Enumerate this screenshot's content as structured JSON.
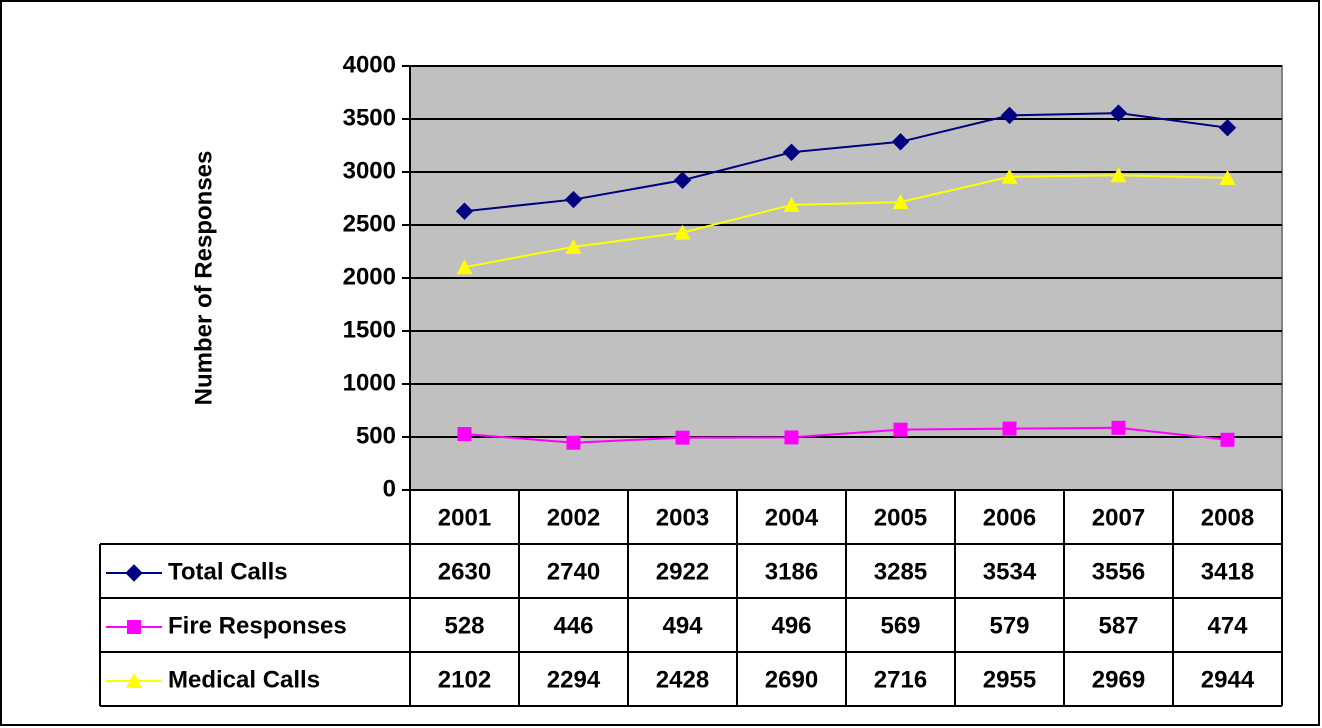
{
  "chart_data": {
    "type": "line",
    "y_label": "Number of Responses",
    "categories": [
      "2001",
      "2002",
      "2003",
      "2004",
      "2005",
      "2006",
      "2007",
      "2008"
    ],
    "series": [
      {
        "name": "Total Calls",
        "color": "#000080",
        "marker": "diamond",
        "values": [
          2630,
          2740,
          2922,
          3186,
          3285,
          3534,
          3556,
          3418
        ]
      },
      {
        "name": "Fire Responses",
        "color": "#FF00FF",
        "marker": "square",
        "values": [
          528,
          446,
          494,
          496,
          569,
          579,
          587,
          474
        ]
      },
      {
        "name": "Medical Calls",
        "color": "#FFFF00",
        "marker": "triangle",
        "values": [
          2102,
          2294,
          2428,
          2690,
          2716,
          2955,
          2969,
          2944
        ]
      }
    ],
    "ylim": [
      0,
      4000
    ],
    "yticks": [
      0,
      500,
      1000,
      1500,
      2000,
      2500,
      3000,
      3500,
      4000
    ],
    "grid": true,
    "plot_background": "#C0C0C0",
    "data_table": true
  }
}
